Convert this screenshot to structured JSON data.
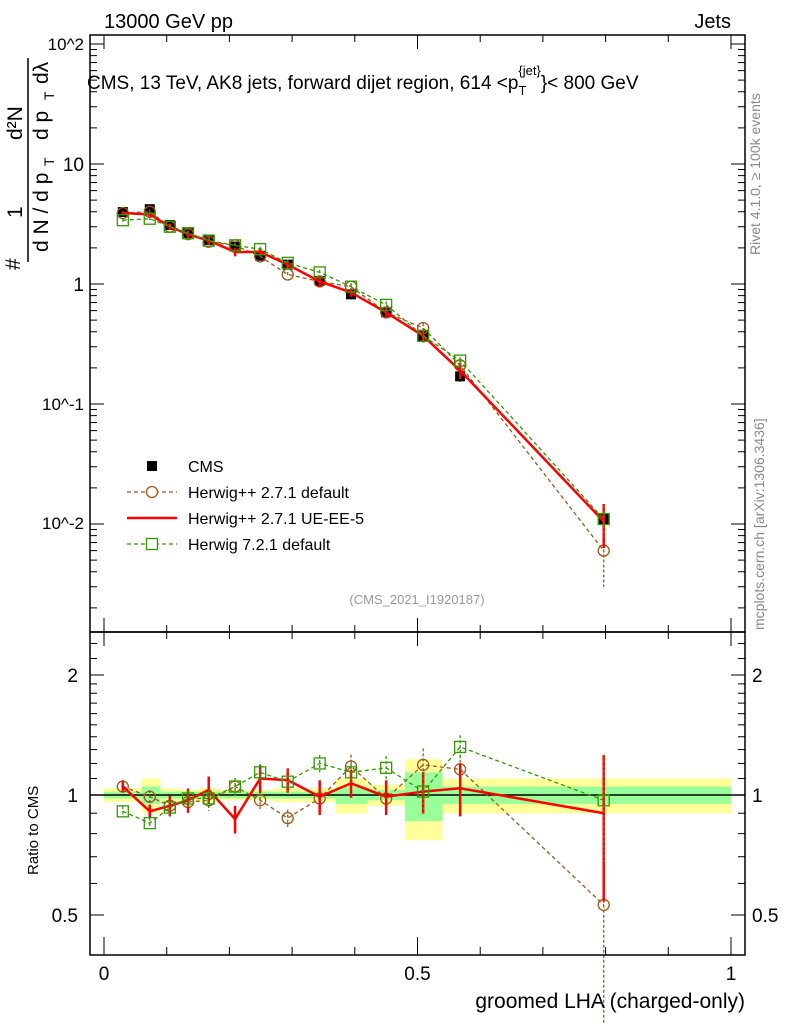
{
  "header": {
    "left": "13000 GeV pp",
    "right": "Jets"
  },
  "side": {
    "rivet": "Rivet 4.1.0, ≥ 100k events",
    "mcplots": "mcplots.cern.ch [arXiv:1306.3436]"
  },
  "chart_data": {
    "type": "line",
    "title": "CMS, 13 TeV, AK8 jets, forward dijet region, 614 <p_T^{jet}< 800 GeV",
    "title_parts": {
      "pre": "CMS, 13 TeV, AK8 jets, forward dijet region, 614 <p",
      "sub": "T",
      "sup": "{jet}",
      "post": "}< 800 GeV"
    },
    "analysis": "(CMS_2021_I1920187)",
    "xlabel": "groomed LHA (charged-only)",
    "ylabel": "1 / (dN/dp_T) d²N/(dp_T dλ)",
    "ylabel_parts": {
      "a": "1",
      "b": "d N / d p",
      "c": "d²N",
      "d": "d p",
      "e": "dλ",
      "t": "T",
      "hash": "#"
    },
    "ratio_ylabel": "Ratio to CMS",
    "xlim": [
      0,
      1
    ],
    "ylim": [
      0.0012,
      118
    ],
    "yscale": "log",
    "ratio_ylim": [
      0.4,
      2.55
    ],
    "x_ticks": [
      "0",
      "0.5",
      "1"
    ],
    "y_ticks": [
      "10^2",
      "10",
      "1",
      "10^-1",
      "10^-2"
    ],
    "ratio_ticks": [
      "2",
      "1",
      "0.5"
    ],
    "bin_edges": [
      0,
      0.06,
      0.09,
      0.12,
      0.15,
      0.185,
      0.23,
      0.27,
      0.32,
      0.37,
      0.42,
      0.48,
      0.54,
      0.6,
      1.0
    ],
    "x": [
      0.03,
      0.073,
      0.105,
      0.134,
      0.167,
      0.209,
      0.249,
      0.293,
      0.344,
      0.394,
      0.45,
      0.509,
      0.568,
      0.797
    ],
    "series": [
      {
        "name": "CMS",
        "color": "#000000",
        "style": "marker",
        "values": [
          3.98,
          4.2,
          3.1,
          2.65,
          2.33,
          2.05,
          1.72,
          1.45,
          1.06,
          0.82,
          0.58,
          0.37,
          0.17,
          0.011
        ],
        "rel_err": [
          0.04,
          0.08,
          0.04,
          0.04,
          0.04,
          0.04,
          0.04,
          0.04,
          0.04,
          0.06,
          0.05,
          0.1,
          0.1,
          0.08
        ]
      },
      {
        "name": "Herwig++ 2.7.1 default",
        "color": "#a0561a",
        "style": "circle-dashed",
        "values": [
          3.9,
          4.0,
          3.0,
          2.6,
          2.25,
          2.1,
          1.7,
          1.2,
          1.05,
          0.95,
          0.58,
          0.43,
          0.21,
          0.006
        ],
        "ratio": [
          1.05,
          0.99,
          0.94,
          0.96,
          0.97,
          1.05,
          0.97,
          0.875,
          0.98,
          1.18,
          0.98,
          1.19,
          1.16,
          0.53
        ],
        "rel_err": [
          0.04,
          0.04,
          0.06,
          0.06,
          0.06,
          0.05,
          0.05,
          0.05,
          0.07,
          0.07,
          0.08,
          0.1,
          0.12,
          0.5
        ]
      },
      {
        "name": "Herwig++ 2.7.1 UE-EE-5",
        "color": "#ff0000",
        "style": "solid",
        "values": [
          3.9,
          3.8,
          3.0,
          2.6,
          2.3,
          1.85,
          1.85,
          1.45,
          1.05,
          0.85,
          0.58,
          0.37,
          0.19,
          0.0105
        ],
        "ratio": [
          1.05,
          0.91,
          0.94,
          0.97,
          1.03,
          0.87,
          1.1,
          1.09,
          0.99,
          1.07,
          0.99,
          1.02,
          1.04,
          0.9
        ],
        "rel_err": [
          0.03,
          0.04,
          0.06,
          0.07,
          0.08,
          0.08,
          0.08,
          0.07,
          0.1,
          0.08,
          0.1,
          0.12,
          0.15,
          0.4
        ]
      },
      {
        "name": "Herwig 7.2.1 default",
        "color": "#339900",
        "style": "square-dashed",
        "values": [
          3.4,
          3.5,
          3.0,
          2.65,
          2.3,
          2.1,
          1.95,
          1.5,
          1.25,
          0.95,
          0.67,
          0.37,
          0.23,
          0.011
        ],
        "ratio": [
          0.91,
          0.85,
          0.93,
          0.98,
          0.98,
          1.05,
          1.14,
          1.08,
          1.2,
          1.14,
          1.17,
          1.02,
          1.32,
          0.97
        ],
        "rel_err": [
          0.03,
          0.03,
          0.05,
          0.05,
          0.05,
          0.05,
          0.05,
          0.07,
          0.05,
          0.06,
          0.07,
          0.12,
          0.07,
          0.3
        ]
      }
    ],
    "bands": {
      "stat_color": "#99ff99",
      "total_color": "#ffff99",
      "stat": [
        0.02,
        0.05,
        0.02,
        0.02,
        0.02,
        0.02,
        0.02,
        0.02,
        0.02,
        0.05,
        0.03,
        0.14,
        0.05,
        0.05
      ],
      "total": [
        0.04,
        0.1,
        0.04,
        0.03,
        0.04,
        0.03,
        0.03,
        0.04,
        0.04,
        0.1,
        0.06,
        0.23,
        0.1,
        0.1
      ]
    },
    "legend_placement": "lower-left"
  }
}
